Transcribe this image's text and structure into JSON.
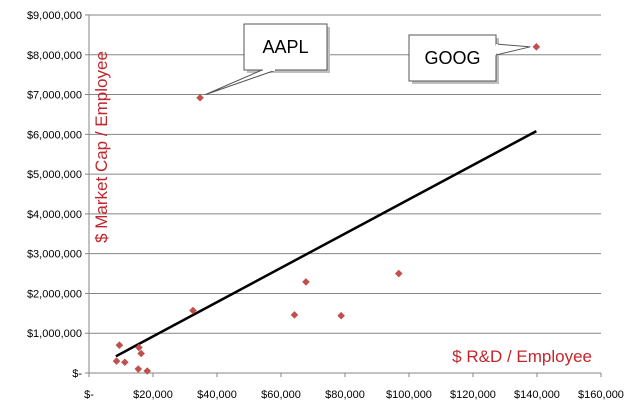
{
  "chart_data": {
    "type": "scatter",
    "xlabel": "$ R&D / Employee",
    "ylabel": "$ Market Cap / Employee",
    "xlim": [
      0,
      160000
    ],
    "ylim": [
      0,
      9000000
    ],
    "x_ticks": [
      0,
      20000,
      40000,
      60000,
      80000,
      100000,
      120000,
      140000,
      160000
    ],
    "x_tick_labels": [
      "$-",
      "$20,000",
      "$40,000",
      "$60,000",
      "$80,000",
      "$100,000",
      "$120,000",
      "$140,000",
      "$160,000"
    ],
    "y_ticks": [
      0,
      1000000,
      2000000,
      3000000,
      4000000,
      5000000,
      6000000,
      7000000,
      8000000,
      9000000
    ],
    "y_tick_labels": [
      "$-",
      "$1,000,000",
      "$2,000,000",
      "$3,000,000",
      "$4,000,000",
      "$5,000,000",
      "$6,000,000",
      "$7,000,000",
      "$8,000,000",
      "$9,000,000"
    ],
    "grid": "horizontal",
    "series": [
      {
        "marker": "diamond",
        "color": "#c0504d",
        "points": [
          {
            "x": 34700,
            "y": 6920000,
            "label": "AAPL"
          },
          {
            "x": 139800,
            "y": 8200000,
            "label": "GOOG"
          },
          {
            "x": 96800,
            "y": 2500000
          },
          {
            "x": 67800,
            "y": 2290000
          },
          {
            "x": 64200,
            "y": 1460000
          },
          {
            "x": 78800,
            "y": 1440000
          },
          {
            "x": 32500,
            "y": 1570000
          },
          {
            "x": 9500,
            "y": 700000
          },
          {
            "x": 15600,
            "y": 640000
          },
          {
            "x": 16300,
            "y": 490000
          },
          {
            "x": 8600,
            "y": 300000
          },
          {
            "x": 11200,
            "y": 270000
          },
          {
            "x": 15400,
            "y": 100000
          },
          {
            "x": 18200,
            "y": 50000
          }
        ]
      }
    ],
    "trendline": {
      "color": "#000000",
      "from": {
        "x": 8400,
        "y": 420000
      },
      "to": {
        "x": 139800,
        "y": 6080000
      }
    },
    "callouts": [
      {
        "text": "AAPL",
        "point": 0
      },
      {
        "text": "GOOG",
        "point": 1
      }
    ]
  }
}
